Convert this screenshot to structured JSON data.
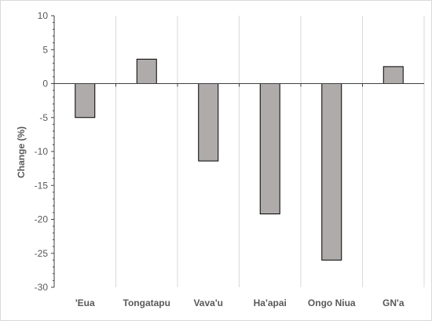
{
  "chart_data": {
    "type": "bar",
    "title": "",
    "xlabel": "",
    "ylabel": "Change (%)",
    "categories": [
      "'Eua",
      "Tongatapu",
      "Vava'u",
      "Ha'apai",
      "Ongo Niua",
      "GN'a"
    ],
    "values": [
      -5.0,
      3.6,
      -11.4,
      -19.2,
      -26.0,
      2.5
    ],
    "ylim": [
      -30,
      10
    ],
    "yticks": [
      10,
      5,
      0,
      -5,
      -10,
      -15,
      -20,
      -25,
      -30
    ],
    "ytick_labels": [
      "10",
      "5",
      "0",
      "-5",
      "-10",
      "-15",
      "-20",
      "-25",
      "-30"
    ],
    "grid": "vertical",
    "legend": "none",
    "colors": {
      "bar_fill": "#afabab",
      "bar_stroke": "#000000",
      "grid": "#d9d9d9",
      "axis": "#404040",
      "text": "#595959"
    }
  }
}
